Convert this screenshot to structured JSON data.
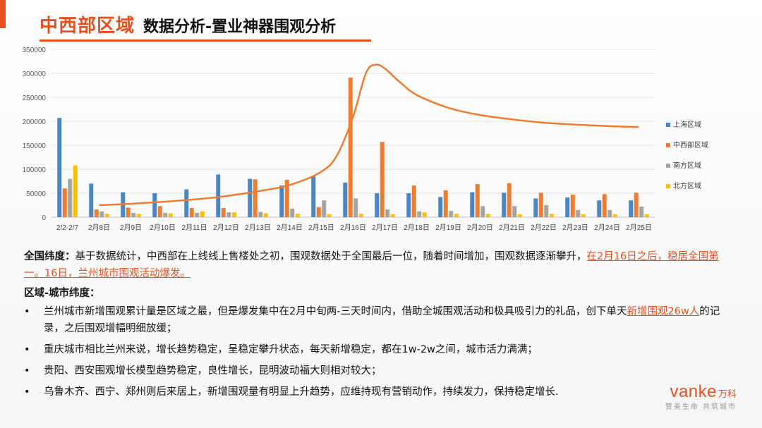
{
  "header": {
    "title_main": "中西部区域",
    "title_sub": "数据分析-置业神器围观分析"
  },
  "chart_data": {
    "type": "bar",
    "categories": [
      "2/2-2/7",
      "2月8日",
      "2月9日",
      "2月10日",
      "2月11日",
      "2月12日",
      "2月13日",
      "2月14日",
      "2月15日",
      "2月16日",
      "2月17日",
      "2月18日",
      "2月19日",
      "2月20日",
      "2月21日",
      "2月22日",
      "2月23日",
      "2月24日",
      "2月25日"
    ],
    "ylim": [
      0,
      350000
    ],
    "yticks": [
      0,
      50000,
      100000,
      150000,
      200000,
      250000,
      300000,
      350000
    ],
    "ytick_labels": [
      "0",
      "50000",
      "100000",
      "150000",
      "200000",
      "250000",
      "300000",
      "350000"
    ],
    "grid": true,
    "legend_position": "right",
    "series": [
      {
        "name": "上海区域",
        "color": "#4a86c5",
        "values": [
          207000,
          70000,
          52000,
          50000,
          58000,
          89000,
          80000,
          66000,
          85000,
          72000,
          50000,
          50000,
          42000,
          52000,
          51000,
          39000,
          41000,
          35000,
          35000
        ]
      },
      {
        "name": "中西部区域",
        "color": "#ed7d31",
        "values": [
          60000,
          16000,
          20000,
          23000,
          19000,
          19000,
          79000,
          78000,
          21000,
          291000,
          157000,
          66000,
          56000,
          69000,
          71000,
          51000,
          47000,
          48000,
          51000
        ]
      },
      {
        "name": "南方区域",
        "color": "#a5a5a5",
        "values": [
          80000,
          12000,
          9000,
          9000,
          9000,
          10000,
          11000,
          18000,
          35000,
          39000,
          16000,
          12000,
          13000,
          23000,
          23000,
          25000,
          15000,
          15000,
          22000
        ]
      },
      {
        "name": "北方区域",
        "color": "#ffc000",
        "values": [
          108000,
          7000,
          7000,
          8000,
          12000,
          10000,
          8000,
          7000,
          6000,
          7000,
          6000,
          10000,
          7000,
          7000,
          6000,
          7000,
          6000,
          6000,
          6000
        ]
      }
    ],
    "trend_line": {
      "color": "#ed7d31",
      "points": [
        [
          1,
          25000
        ],
        [
          2,
          28000
        ],
        [
          3,
          32000
        ],
        [
          4,
          37000
        ],
        [
          5,
          44000
        ],
        [
          6,
          54000
        ],
        [
          7,
          67000
        ],
        [
          8,
          95000
        ],
        [
          8.5,
          130000
        ],
        [
          9,
          210000
        ],
        [
          9.4,
          300000
        ],
        [
          9.7,
          318000
        ],
        [
          10,
          310000
        ],
        [
          10.5,
          280000
        ],
        [
          11,
          255000
        ],
        [
          12,
          228000
        ],
        [
          13,
          213000
        ],
        [
          14,
          204000
        ],
        [
          15,
          197000
        ],
        [
          16,
          193000
        ],
        [
          17,
          190000
        ],
        [
          18,
          188000
        ]
      ]
    }
  },
  "text": {
    "p1_label": "全国纬度：",
    "p1_text": "基于数据统计，中西部在上线线上售楼处之初，围观数据处于全国最后一位，随着时间增加，围观数据逐渐攀升，",
    "p1_highlight": "在2月16日之后，稳居全国第一。16日，兰州城市围观活动爆发。",
    "subhead": "区域-城市纬度：",
    "bullet_char": "•",
    "b1_text": "兰州城市新增围观累计量是区域之最，但是爆发集中在2月中旬两-三天时间内，借助全城围观活动和极具吸引力的礼品，创下单天",
    "b1_highlight": "新增围观26w人",
    "b1_tail": "的记录，之后围观增幅明细放缓；",
    "b2": "重庆城市相比兰州来说，增长趋势稳定，呈稳定攀升状态，每天新增稳定，都在1w-2w之间，城市活力满满；",
    "b3": "贵阳、西安围观增长模型趋势稳定，良性增长，昆明波动福大则相对较大；",
    "b4": "乌鲁木齐、西宁、郑州则后来居上，新增围观量有明显上升趋势，应维持现有营销动作，持续发力，保持稳定增长."
  },
  "logo": {
    "brand": "vanke",
    "brand_cn": "万科",
    "tagline": "赞美生命 共筑城市"
  }
}
